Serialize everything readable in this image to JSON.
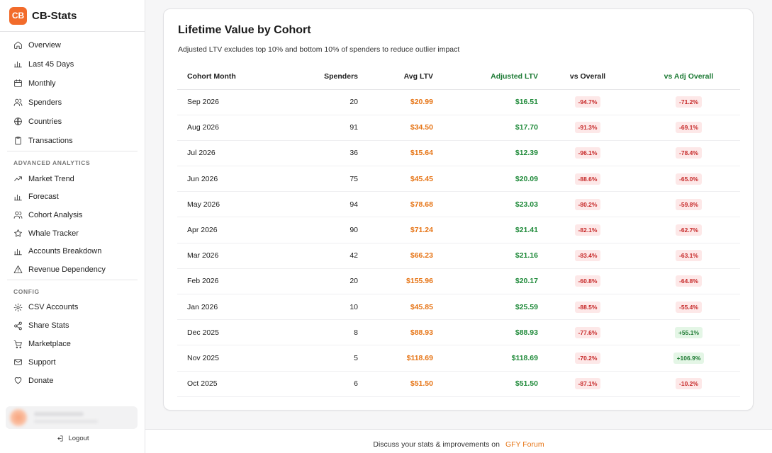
{
  "brand": {
    "logo": "CB",
    "name": "CB-Stats",
    "accent": "#f26b2b"
  },
  "sidebar": {
    "main_items": [
      {
        "label": "Overview",
        "icon": "home-icon"
      },
      {
        "label": "Last 45 Days",
        "icon": "bar-chart-icon"
      },
      {
        "label": "Monthly",
        "icon": "calendar-icon"
      },
      {
        "label": "Spenders",
        "icon": "users-icon"
      },
      {
        "label": "Countries",
        "icon": "globe-icon"
      },
      {
        "label": "Transactions",
        "icon": "clipboard-icon"
      }
    ],
    "advanced_label": "ADVANCED ANALYTICS",
    "advanced_items": [
      {
        "label": "Market Trend",
        "icon": "trend-icon"
      },
      {
        "label": "Forecast",
        "icon": "bar-chart-icon"
      },
      {
        "label": "Cohort Analysis",
        "icon": "users-icon"
      },
      {
        "label": "Whale Tracker",
        "icon": "star-icon"
      },
      {
        "label": "Accounts Breakdown",
        "icon": "bar-chart-icon"
      },
      {
        "label": "Revenue Dependency",
        "icon": "warning-icon"
      }
    ],
    "config_label": "CONFIG",
    "config_items": [
      {
        "label": "CSV Accounts",
        "icon": "gear-icon"
      },
      {
        "label": "Share Stats",
        "icon": "share-icon"
      },
      {
        "label": "Marketplace",
        "icon": "cart-icon"
      },
      {
        "label": "Support",
        "icon": "mail-icon"
      },
      {
        "label": "Donate",
        "icon": "heart-icon"
      }
    ],
    "logout_label": "Logout"
  },
  "card": {
    "title": "Lifetime Value by Cohort",
    "subtitle": "Adjusted LTV excludes top 10% and bottom 10% of spenders to reduce outlier impact",
    "columns": [
      "Cohort Month",
      "Spenders",
      "Avg LTV",
      "Adjusted LTV",
      "vs Overall",
      "vs Adj Overall"
    ],
    "rows": [
      {
        "month": "Sep 2026",
        "spenders": "20",
        "avg": "$20.99",
        "adj": "$16.51",
        "vs": "-94.7%",
        "vs_adj": "-71.2%"
      },
      {
        "month": "Aug 2026",
        "spenders": "91",
        "avg": "$34.50",
        "adj": "$17.70",
        "vs": "-91.3%",
        "vs_adj": "-69.1%"
      },
      {
        "month": "Jul 2026",
        "spenders": "36",
        "avg": "$15.64",
        "adj": "$12.39",
        "vs": "-96.1%",
        "vs_adj": "-78.4%"
      },
      {
        "month": "Jun 2026",
        "spenders": "75",
        "avg": "$45.45",
        "adj": "$20.09",
        "vs": "-88.6%",
        "vs_adj": "-65.0%"
      },
      {
        "month": "May 2026",
        "spenders": "94",
        "avg": "$78.68",
        "adj": "$23.03",
        "vs": "-80.2%",
        "vs_adj": "-59.8%"
      },
      {
        "month": "Apr 2026",
        "spenders": "90",
        "avg": "$71.24",
        "adj": "$21.41",
        "vs": "-82.1%",
        "vs_adj": "-62.7%"
      },
      {
        "month": "Mar 2026",
        "spenders": "42",
        "avg": "$66.23",
        "adj": "$21.16",
        "vs": "-83.4%",
        "vs_adj": "-63.1%"
      },
      {
        "month": "Feb 2026",
        "spenders": "20",
        "avg": "$155.96",
        "adj": "$20.17",
        "vs": "-60.8%",
        "vs_adj": "-64.8%"
      },
      {
        "month": "Jan 2026",
        "spenders": "10",
        "avg": "$45.85",
        "adj": "$25.59",
        "vs": "-88.5%",
        "vs_adj": "-55.4%"
      },
      {
        "month": "Dec 2025",
        "spenders": "8",
        "avg": "$88.93",
        "adj": "$88.93",
        "vs": "-77.6%",
        "vs_adj": "+55.1%"
      },
      {
        "month": "Nov 2025",
        "spenders": "5",
        "avg": "$118.69",
        "adj": "$118.69",
        "vs": "-70.2%",
        "vs_adj": "+106.9%"
      },
      {
        "month": "Oct 2025",
        "spenders": "6",
        "avg": "$51.50",
        "adj": "$51.50",
        "vs": "-87.1%",
        "vs_adj": "-10.2%"
      }
    ]
  },
  "footer": {
    "text": "Discuss your stats & improvements on",
    "link": "GFY Forum"
  }
}
